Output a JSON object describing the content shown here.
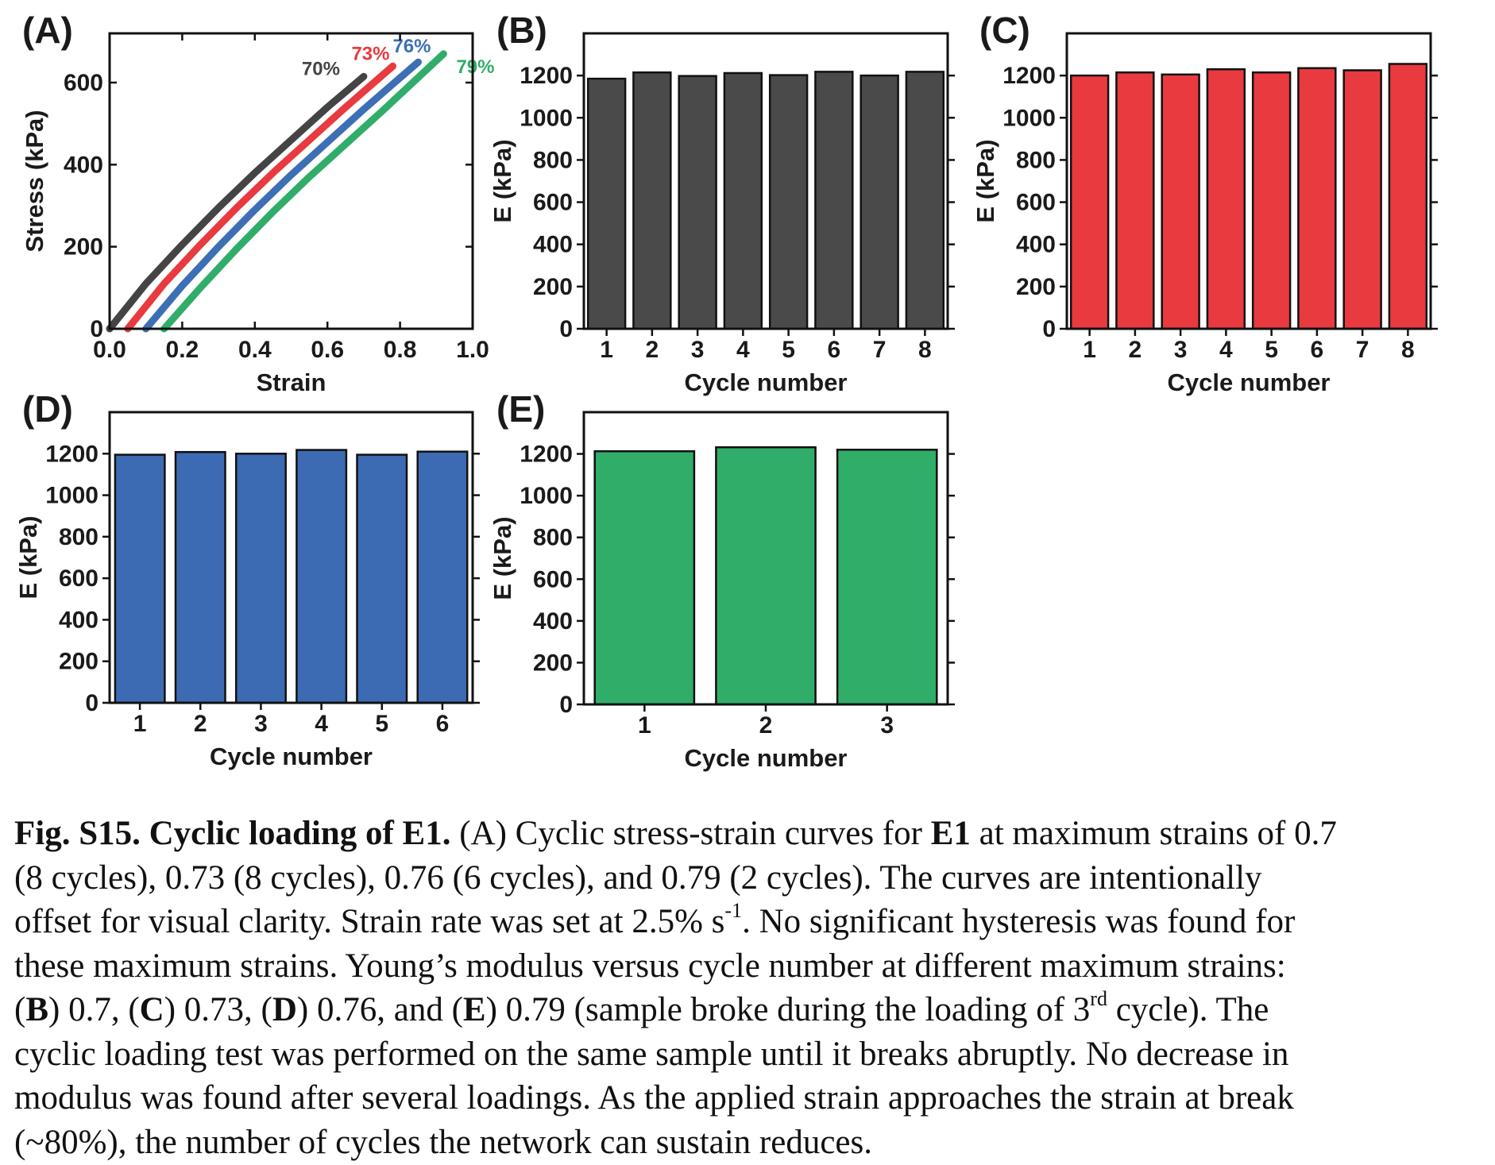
{
  "chart_data": [
    {
      "panel": "(A)",
      "type": "line",
      "xlabel": "Strain",
      "ylabel": "Stress (kPa)",
      "xlim": [
        0.0,
        1.0
      ],
      "ylim": [
        0,
        720
      ],
      "xticks": [
        "0.0",
        "0.2",
        "0.4",
        "0.6",
        "0.8",
        "1.0"
      ],
      "yticks": [
        "0",
        "200",
        "400",
        "600"
      ],
      "series": [
        {
          "name": "70%",
          "color": "#444444",
          "x": [
            0.0,
            0.1,
            0.2,
            0.3,
            0.4,
            0.5,
            0.6,
            0.7
          ],
          "y": [
            0,
            110,
            205,
            295,
            380,
            460,
            540,
            615
          ]
        },
        {
          "name": "73%",
          "color": "#e83a3f",
          "x": [
            0.05,
            0.15,
            0.25,
            0.35,
            0.45,
            0.55,
            0.65,
            0.78
          ],
          "y": [
            0,
            110,
            205,
            295,
            380,
            460,
            540,
            640
          ]
        },
        {
          "name": "76%",
          "color": "#3c6fb6",
          "x": [
            0.1,
            0.2,
            0.3,
            0.4,
            0.5,
            0.6,
            0.7,
            0.85
          ],
          "y": [
            0,
            105,
            200,
            290,
            375,
            455,
            535,
            650
          ]
        },
        {
          "name": "79%",
          "color": "#31ad6a",
          "x": [
            0.15,
            0.25,
            0.35,
            0.45,
            0.55,
            0.65,
            0.75,
            0.92
          ],
          "y": [
            0,
            100,
            195,
            285,
            370,
            450,
            530,
            670
          ]
        }
      ]
    },
    {
      "panel": "(B)",
      "type": "bar",
      "color": "#4a4a4a",
      "xlabel": "Cycle number",
      "ylabel": "E (kPa)",
      "ylim": [
        0,
        1400
      ],
      "yticks": [
        "0",
        "200",
        "400",
        "600",
        "800",
        "1000",
        "1200"
      ],
      "categories": [
        "1",
        "2",
        "3",
        "4",
        "5",
        "6",
        "7",
        "8"
      ],
      "values": [
        1185,
        1215,
        1198,
        1212,
        1202,
        1218,
        1200,
        1218
      ]
    },
    {
      "panel": "(C)",
      "type": "bar",
      "color": "#e83a3f",
      "xlabel": "Cycle number",
      "ylabel": "E (kPa)",
      "ylim": [
        0,
        1400
      ],
      "yticks": [
        "0",
        "200",
        "400",
        "600",
        "800",
        "1000",
        "1200"
      ],
      "categories": [
        "1",
        "2",
        "3",
        "4",
        "5",
        "6",
        "7",
        "8"
      ],
      "values": [
        1200,
        1215,
        1205,
        1230,
        1215,
        1235,
        1225,
        1255
      ]
    },
    {
      "panel": "(D)",
      "type": "bar",
      "color": "#3c6bb3",
      "xlabel": "Cycle number",
      "ylabel": "E (kPa)",
      "ylim": [
        0,
        1400
      ],
      "yticks": [
        "0",
        "200",
        "400",
        "600",
        "800",
        "1000",
        "1200"
      ],
      "categories": [
        "1",
        "2",
        "3",
        "4",
        "5",
        "6"
      ],
      "values": [
        1195,
        1208,
        1200,
        1218,
        1195,
        1210
      ]
    },
    {
      "panel": "(E)",
      "type": "bar",
      "color": "#31ad6a",
      "xlabel": "Cycle number",
      "ylabel": "E (kPa)",
      "ylim": [
        0,
        1400
      ],
      "yticks": [
        "0",
        "200",
        "400",
        "600",
        "800",
        "1000",
        "1200"
      ],
      "categories": [
        "1",
        "2",
        "3"
      ],
      "values": [
        1213,
        1232,
        1220
      ]
    }
  ],
  "caption": {
    "lead": "Fig. S15. Cyclic loading of E1.",
    "line1": [
      "(",
      "A",
      ") Cyclic stress-strain curves for ",
      "E1",
      " at maximum strains of 0.7"
    ],
    "line2": "(8 cycles), 0.73 (8 cycles), 0.76 (6 cycles), and 0.79 (2 cycles). The curves are intentionally",
    "line3a": "offset for visual clarity. Strain rate was set at 2.5% s",
    "line3sup": "-1",
    "line3b": ". No significant hysteresis was found for",
    "line4": "these maximum strains. Young’s modulus versus cycle number at different maximum strains:",
    "line5": [
      "(",
      "B",
      ") 0.7, (",
      "C",
      ") 0.73, (",
      "D",
      ") 0.76, and (",
      "E",
      ") 0.79 (sample broke during the loading of 3",
      "rd",
      " cycle). The"
    ],
    "line6": "cyclic loading test was performed on the same sample until it breaks abruptly. No decrease in",
    "line7": "modulus was found after several loadings. As the applied strain approaches the strain at break",
    "line8": "(~80%), the number of cycles the network can sustain reduces."
  }
}
